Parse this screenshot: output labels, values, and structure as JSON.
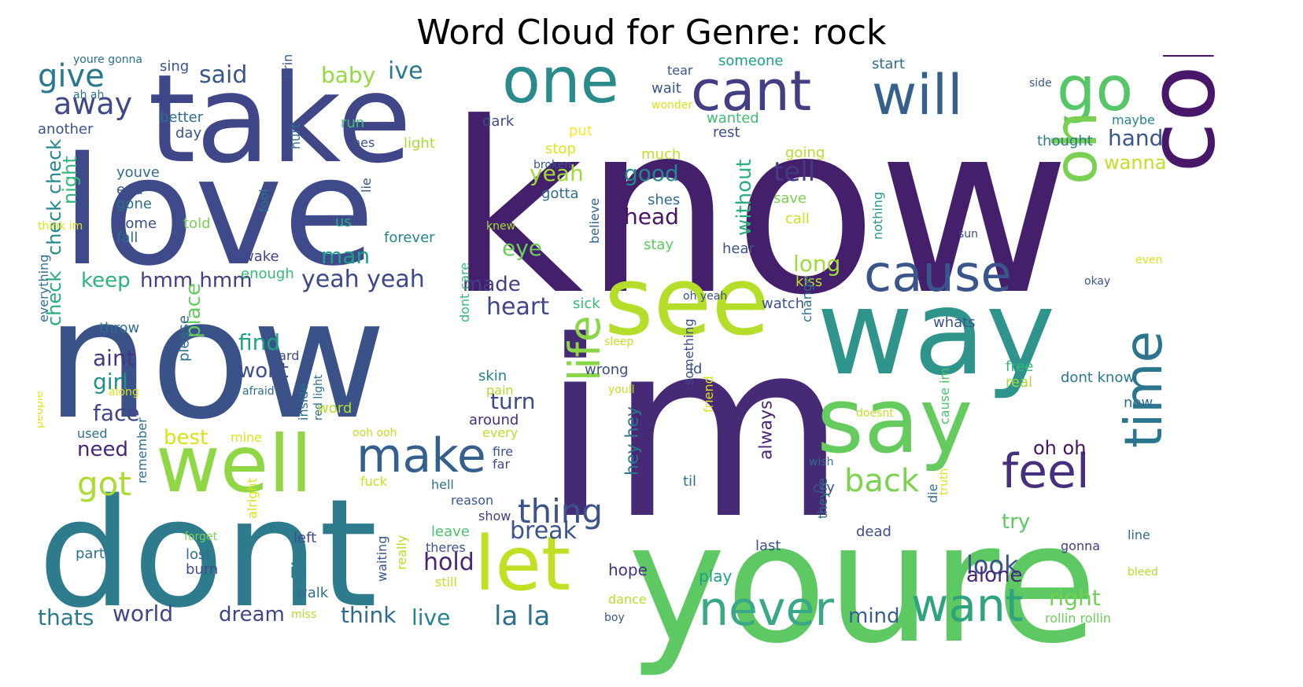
{
  "chart_data": {
    "type": "wordcloud",
    "title": "Word Cloud for Genre: rock",
    "colormap": "viridis",
    "background": "#ffffff",
    "words": [
      {
        "text": "know",
        "weight": 1.0,
        "color": "#44206c"
      },
      {
        "text": "im",
        "weight": 0.98,
        "color": "#462a75"
      },
      {
        "text": "now",
        "weight": 0.92,
        "color": "#3b5289"
      },
      {
        "text": "youre",
        "weight": 0.84,
        "color": "#5ec962"
      },
      {
        "text": "dont",
        "weight": 0.8,
        "color": "#2e7b8d"
      },
      {
        "text": "love",
        "weight": 0.78,
        "color": "#3e4a89"
      },
      {
        "text": "take",
        "weight": 0.72,
        "color": "#3f4788"
      },
      {
        "text": "way",
        "weight": 0.7,
        "color": "#2f948c"
      },
      {
        "text": "say",
        "weight": 0.58,
        "color": "#65cb5e"
      },
      {
        "text": "see",
        "weight": 0.52,
        "color": "#b5de2b"
      },
      {
        "text": "come",
        "weight": 0.5,
        "color": "#48176a"
      },
      {
        "text": "one",
        "weight": 0.42,
        "color": "#2a8b8c"
      },
      {
        "text": "well",
        "weight": 0.4,
        "color": "#8fd744"
      },
      {
        "text": "let",
        "weight": 0.38,
        "color": "#c2df23"
      },
      {
        "text": "go",
        "weight": 0.36,
        "color": "#56c667"
      },
      {
        "text": "oh",
        "weight": 0.34,
        "color": "#7ad151"
      },
      {
        "text": "cant",
        "weight": 0.32,
        "color": "#433d84"
      },
      {
        "text": "will",
        "weight": 0.32,
        "color": "#35608d"
      },
      {
        "text": "time",
        "weight": 0.3,
        "color": "#2b758e"
      },
      {
        "text": "cause",
        "weight": 0.28,
        "color": "#3a548c"
      },
      {
        "text": "never",
        "weight": 0.26,
        "color": "#38a887"
      },
      {
        "text": "make",
        "weight": 0.26,
        "color": "#355f8d"
      },
      {
        "text": "want",
        "weight": 0.25,
        "color": "#2ea37e"
      },
      {
        "text": "life",
        "weight": 0.24,
        "color": "#8ad548"
      },
      {
        "text": "feel",
        "weight": 0.24,
        "color": "#46307e"
      },
      {
        "text": "back",
        "weight": 0.18,
        "color": "#7cd250"
      },
      {
        "text": "got",
        "weight": 0.18,
        "color": "#addc30"
      },
      {
        "text": "thing",
        "weight": 0.17,
        "color": "#3b528b"
      },
      {
        "text": "give",
        "weight": 0.16,
        "color": "#29798e"
      },
      {
        "text": "away",
        "weight": 0.16,
        "color": "#3f4889"
      },
      {
        "text": "tell",
        "weight": 0.14,
        "color": "#443a83"
      },
      {
        "text": "la la",
        "weight": 0.14,
        "color": "#2c728e"
      },
      {
        "text": "look",
        "weight": 0.14,
        "color": "#3a538b"
      },
      {
        "text": "said",
        "weight": 0.13,
        "color": "#39568c"
      },
      {
        "text": "yeah yeah",
        "weight": 0.13,
        "color": "#3e4989"
      },
      {
        "text": "heart",
        "weight": 0.13,
        "color": "#404688"
      },
      {
        "text": "break",
        "weight": 0.13,
        "color": "#3a548c"
      },
      {
        "text": "hold",
        "weight": 0.13,
        "color": "#482475"
      },
      {
        "text": "ive",
        "weight": 0.12,
        "color": "#2a788e"
      },
      {
        "text": "baby",
        "weight": 0.12,
        "color": "#95d840"
      },
      {
        "text": "yeah",
        "weight": 0.12,
        "color": "#a0da39"
      },
      {
        "text": "good",
        "weight": 0.12,
        "color": "#24868e"
      },
      {
        "text": "head",
        "weight": 0.12,
        "color": "#471365"
      },
      {
        "text": "hand",
        "weight": 0.12,
        "color": "#39568c"
      },
      {
        "text": "eye",
        "weight": 0.12,
        "color": "#6ccd5a"
      },
      {
        "text": "man",
        "weight": 0.12,
        "color": "#1f9e89"
      },
      {
        "text": "hmm hmm",
        "weight": 0.12,
        "color": "#433e85"
      },
      {
        "text": "long",
        "weight": 0.12,
        "color": "#a2da37"
      },
      {
        "text": "turn",
        "weight": 0.12,
        "color": "#3e4989"
      },
      {
        "text": "find",
        "weight": 0.12,
        "color": "#20a386"
      },
      {
        "text": "wont",
        "weight": 0.12,
        "color": "#3c4f8a"
      },
      {
        "text": "aint",
        "weight": 0.12,
        "color": "#453581"
      },
      {
        "text": "girl",
        "weight": 0.12,
        "color": "#20928c"
      },
      {
        "text": "face",
        "weight": 0.12,
        "color": "#404688"
      },
      {
        "text": "keep",
        "weight": 0.11,
        "color": "#2db27d"
      },
      {
        "text": "made",
        "weight": 0.11,
        "color": "#433e85"
      },
      {
        "text": "best",
        "weight": 0.11,
        "color": "#d8e219"
      },
      {
        "text": "need",
        "weight": 0.11,
        "color": "#482677"
      },
      {
        "text": "world",
        "weight": 0.11,
        "color": "#404588"
      },
      {
        "text": "thats",
        "weight": 0.11,
        "color": "#2a788e"
      },
      {
        "text": "dream",
        "weight": 0.11,
        "color": "#3f4788"
      },
      {
        "text": "think",
        "weight": 0.11,
        "color": "#306a8e"
      },
      {
        "text": "live",
        "weight": 0.11,
        "color": "#26828e"
      },
      {
        "text": "mind",
        "weight": 0.11,
        "color": "#365d8d"
      },
      {
        "text": "right",
        "weight": 0.11,
        "color": "#73d056"
      },
      {
        "text": "try",
        "weight": 0.11,
        "color": "#5ec962"
      },
      {
        "text": "alone",
        "weight": 0.11,
        "color": "#482878"
      },
      {
        "text": "oh oh",
        "weight": 0.11,
        "color": "#471365"
      },
      {
        "text": "wanna",
        "weight": 0.1,
        "color": "#c0df25"
      },
      {
        "text": "ill",
        "weight": 0.1,
        "color": "#2a788e"
      },
      {
        "text": "place",
        "weight": 0.1,
        "color": "#63cb5f"
      },
      {
        "text": "night",
        "weight": 0.1,
        "color": "#35b779"
      },
      {
        "text": "check check",
        "weight": 0.1,
        "color": "#23898e"
      },
      {
        "text": "check",
        "weight": 0.1,
        "color": "#25ac82"
      },
      {
        "text": "without",
        "weight": 0.1,
        "color": "#2ab07f"
      },
      {
        "text": "always",
        "weight": 0.1,
        "color": "#482475"
      },
      {
        "text": "hey hey",
        "weight": 0.09,
        "color": "#2b758e"
      },
      {
        "text": "hope",
        "weight": 0.06,
        "color": "#46307e"
      },
      {
        "text": "play",
        "weight": 0.06,
        "color": "#1fa088"
      },
      {
        "text": "last",
        "weight": 0.06,
        "color": "#3b528b"
      },
      {
        "text": "sick",
        "weight": 0.06,
        "color": "#35b779"
      },
      {
        "text": "watch",
        "weight": 0.06,
        "color": "#3b528b"
      },
      {
        "text": "wrong",
        "weight": 0.06,
        "color": "#3e4c8a"
      },
      {
        "text": "skin",
        "weight": 0.06,
        "color": "#26828e"
      },
      {
        "text": "pain",
        "weight": 0.06,
        "color": "#b2dd2d"
      },
      {
        "text": "around",
        "weight": 0.06,
        "color": "#472d7b"
      },
      {
        "text": "every",
        "weight": 0.06,
        "color": "#bddf26"
      },
      {
        "text": "fire",
        "weight": 0.06,
        "color": "#3b528b"
      },
      {
        "text": "far",
        "weight": 0.06,
        "color": "#3f4889"
      },
      {
        "text": "fuck",
        "weight": 0.05,
        "color": "#cae11f"
      },
      {
        "text": "hell",
        "weight": 0.05,
        "color": "#2e6f8e"
      },
      {
        "text": "reason",
        "weight": 0.05,
        "color": "#39568c"
      },
      {
        "text": "show",
        "weight": 0.05,
        "color": "#443983"
      },
      {
        "text": "leave",
        "weight": 0.05,
        "color": "#4ac16d"
      },
      {
        "text": "theres",
        "weight": 0.05,
        "color": "#3b528b"
      },
      {
        "text": "still",
        "weight": 0.05,
        "color": "#c8e020"
      },
      {
        "text": "waiting",
        "weight": 0.05,
        "color": "#39568c"
      },
      {
        "text": "really",
        "weight": 0.05,
        "color": "#bade28"
      },
      {
        "text": "dont care",
        "weight": 0.05,
        "color": "#35b779"
      },
      {
        "text": "believe",
        "weight": 0.05,
        "color": "#34618d"
      },
      {
        "text": "forever",
        "weight": 0.05,
        "color": "#25848e"
      },
      {
        "text": "enough",
        "weight": 0.05,
        "color": "#37b878"
      },
      {
        "text": "wake",
        "weight": 0.05,
        "color": "#414487"
      },
      {
        "text": "us",
        "weight": 0.05,
        "color": "#29af7f"
      },
      {
        "text": "fool",
        "weight": 0.05,
        "color": "#2c738e"
      },
      {
        "text": "lie",
        "weight": 0.05,
        "color": "#39568c"
      },
      {
        "text": "hurt",
        "weight": 0.05,
        "color": "#2f6c8e"
      },
      {
        "text": "bring",
        "weight": 0.05,
        "color": "#38588c"
      },
      {
        "text": "run",
        "weight": 0.05,
        "color": "#3fbc73"
      },
      {
        "text": "hes",
        "weight": 0.05,
        "color": "#3b528b"
      },
      {
        "text": "light",
        "weight": 0.05,
        "color": "#a8db34"
      },
      {
        "text": "dark",
        "weight": 0.05,
        "color": "#3e4c8a"
      },
      {
        "text": "put",
        "weight": 0.05,
        "color": "#fde725"
      },
      {
        "text": "stop",
        "weight": 0.05,
        "color": "#dde318"
      },
      {
        "text": "broken",
        "weight": 0.05,
        "color": "#3b528b"
      },
      {
        "text": "gotta",
        "weight": 0.05,
        "color": "#2e6e8e"
      },
      {
        "text": "knew",
        "weight": 0.04,
        "color": "#a5db36"
      },
      {
        "text": "wait",
        "weight": 0.05,
        "color": "#39568c"
      },
      {
        "text": "wonder",
        "weight": 0.04,
        "color": "#d8e219"
      },
      {
        "text": "tear",
        "weight": 0.05,
        "color": "#3b528b"
      },
      {
        "text": "much",
        "weight": 0.05,
        "color": "#c2df23"
      },
      {
        "text": "shes",
        "weight": 0.05,
        "color": "#306a8e"
      },
      {
        "text": "stay",
        "weight": 0.05,
        "color": "#5ec962"
      },
      {
        "text": "someone",
        "weight": 0.05,
        "color": "#1fa088"
      },
      {
        "text": "wanted",
        "weight": 0.05,
        "color": "#40bd72"
      },
      {
        "text": "rest",
        "weight": 0.05,
        "color": "#3e4c8a"
      },
      {
        "text": "going",
        "weight": 0.05,
        "color": "#b5de2b"
      },
      {
        "text": "save",
        "weight": 0.05,
        "color": "#7ad151"
      },
      {
        "text": "call",
        "weight": 0.05,
        "color": "#cae11f"
      },
      {
        "text": "hear",
        "weight": 0.05,
        "color": "#3b528b"
      },
      {
        "text": "kiss",
        "weight": 0.05,
        "color": "#bddf26"
      },
      {
        "text": "nothing",
        "weight": 0.05,
        "color": "#1f9a8a"
      },
      {
        "text": "start",
        "weight": 0.05,
        "color": "#306a8e"
      },
      {
        "text": "side",
        "weight": 0.04,
        "color": "#38588c"
      },
      {
        "text": "maybe",
        "weight": 0.05,
        "color": "#25848e"
      },
      {
        "text": "thought",
        "weight": 0.05,
        "color": "#2a788e"
      },
      {
        "text": "sun",
        "weight": 0.04,
        "color": "#3e4c8a"
      },
      {
        "text": "even",
        "weight": 0.04,
        "color": "#dde318"
      },
      {
        "text": "okay",
        "weight": 0.04,
        "color": "#3b528b"
      },
      {
        "text": "whats",
        "weight": 0.05,
        "color": "#3b528b"
      },
      {
        "text": "dont know",
        "weight": 0.05,
        "color": "#2a788e"
      },
      {
        "text": "free",
        "weight": 0.05,
        "color": "#35b779"
      },
      {
        "text": "real",
        "weight": 0.05,
        "color": "#a8db34"
      },
      {
        "text": "new",
        "weight": 0.05,
        "color": "#2e6e8e"
      },
      {
        "text": "change",
        "weight": 0.05,
        "color": "#2e6e8e"
      },
      {
        "text": "id",
        "weight": 0.05,
        "color": "#3b528b"
      },
      {
        "text": "youll",
        "weight": 0.04,
        "color": "#c8e020"
      },
      {
        "text": "doesnt",
        "weight": 0.04,
        "color": "#c2df23"
      },
      {
        "text": "something",
        "weight": 0.05,
        "color": "#3e4c8a"
      },
      {
        "text": "friend",
        "weight": 0.05,
        "color": "#d8e219"
      },
      {
        "text": "til",
        "weight": 0.05,
        "color": "#2e6e8e"
      },
      {
        "text": "cause im",
        "weight": 0.05,
        "color": "#4ac16d"
      },
      {
        "text": "wish",
        "weight": 0.04,
        "color": "#2e6e8e"
      },
      {
        "text": "cry",
        "weight": 0.05,
        "color": "#3b528b"
      },
      {
        "text": "die",
        "weight": 0.05,
        "color": "#2e6e8e"
      },
      {
        "text": "truth",
        "weight": 0.05,
        "color": "#dde318"
      },
      {
        "text": "dead",
        "weight": 0.05,
        "color": "#3e4c8a"
      },
      {
        "text": "theyre",
        "weight": 0.05,
        "color": "#2e6e8e"
      },
      {
        "text": "gonna",
        "weight": 0.05,
        "color": "#433e85"
      },
      {
        "text": "line",
        "weight": 0.05,
        "color": "#2e6e8e"
      },
      {
        "text": "bleed",
        "weight": 0.04,
        "color": "#b2dd2d"
      },
      {
        "text": "rollin rollin",
        "weight": 0.05,
        "color": "#6ccd5a"
      },
      {
        "text": "dance",
        "weight": 0.05,
        "color": "#b5de2b"
      },
      {
        "text": "boy",
        "weight": 0.04,
        "color": "#39568c"
      },
      {
        "text": "miss",
        "weight": 0.04,
        "color": "#b2dd2d"
      },
      {
        "text": "walk",
        "weight": 0.05,
        "color": "#2e6e8e"
      },
      {
        "text": "burn",
        "weight": 0.05,
        "color": "#3e4c8a"
      },
      {
        "text": "lost",
        "weight": 0.05,
        "color": "#2e6e8e"
      },
      {
        "text": "forget",
        "weight": 0.04,
        "color": "#7ad151"
      },
      {
        "text": "part",
        "weight": 0.05,
        "color": "#2e6e8e"
      },
      {
        "text": "remember",
        "weight": 0.05,
        "color": "#2e6e8e"
      },
      {
        "text": "alright",
        "weight": 0.05,
        "color": "#dde318"
      },
      {
        "text": "left",
        "weight": 0.05,
        "color": "#3e4c8a"
      },
      {
        "text": "people",
        "weight": 0.05,
        "color": "#dde318"
      },
      {
        "text": "used",
        "weight": 0.05,
        "color": "#2e6e8e"
      },
      {
        "text": "mine",
        "weight": 0.04,
        "color": "#dde318"
      },
      {
        "text": "inside",
        "weight": 0.05,
        "color": "#2e6e8e"
      },
      {
        "text": "red light",
        "weight": 0.04,
        "color": "#2e6e8e"
      },
      {
        "text": "ooh ooh",
        "weight": 0.04,
        "color": "#c2df23"
      },
      {
        "text": "word",
        "weight": 0.05,
        "color": "#b5de2b"
      },
      {
        "text": "afraid",
        "weight": 0.04,
        "color": "#2e6e8e"
      },
      {
        "text": "hard",
        "weight": 0.04,
        "color": "#3e4c8a"
      },
      {
        "text": "please",
        "weight": 0.05,
        "color": "#2e6e8e"
      },
      {
        "text": "along",
        "weight": 0.04,
        "color": "#dde318"
      },
      {
        "text": "throw",
        "weight": 0.05,
        "color": "#2e6e8e"
      },
      {
        "text": "everything",
        "weight": 0.05,
        "color": "#2e6e8e"
      },
      {
        "text": "sleep",
        "weight": 0.04,
        "color": "#c2df23"
      },
      {
        "text": "oh yeah",
        "weight": 0.04,
        "color": "#3e4c8a"
      },
      {
        "text": "youve",
        "weight": 0.05,
        "color": "#2e6e8e"
      },
      {
        "text": "end",
        "weight": 0.05,
        "color": "#3b528b"
      },
      {
        "text": "gone",
        "weight": 0.05,
        "color": "#2e6e8e"
      },
      {
        "text": "home",
        "weight": 0.05,
        "color": "#3e4c8a"
      },
      {
        "text": "fall",
        "weight": 0.05,
        "color": "#2e6e8e"
      },
      {
        "text": "think im",
        "weight": 0.04,
        "color": "#dde318"
      },
      {
        "text": "told",
        "weight": 0.05,
        "color": "#7ad151"
      },
      {
        "text": "day",
        "weight": 0.05,
        "color": "#3b528b"
      },
      {
        "text": "better",
        "weight": 0.05,
        "color": "#2e6e8e"
      },
      {
        "text": "another",
        "weight": 0.05,
        "color": "#3b528b"
      },
      {
        "text": "ah ah",
        "weight": 0.04,
        "color": "#2e6e8e"
      },
      {
        "text": "sing",
        "weight": 0.05,
        "color": "#3b528b"
      },
      {
        "text": "youre gonna",
        "weight": 0.04,
        "color": "#2e6e8e"
      }
    ]
  }
}
